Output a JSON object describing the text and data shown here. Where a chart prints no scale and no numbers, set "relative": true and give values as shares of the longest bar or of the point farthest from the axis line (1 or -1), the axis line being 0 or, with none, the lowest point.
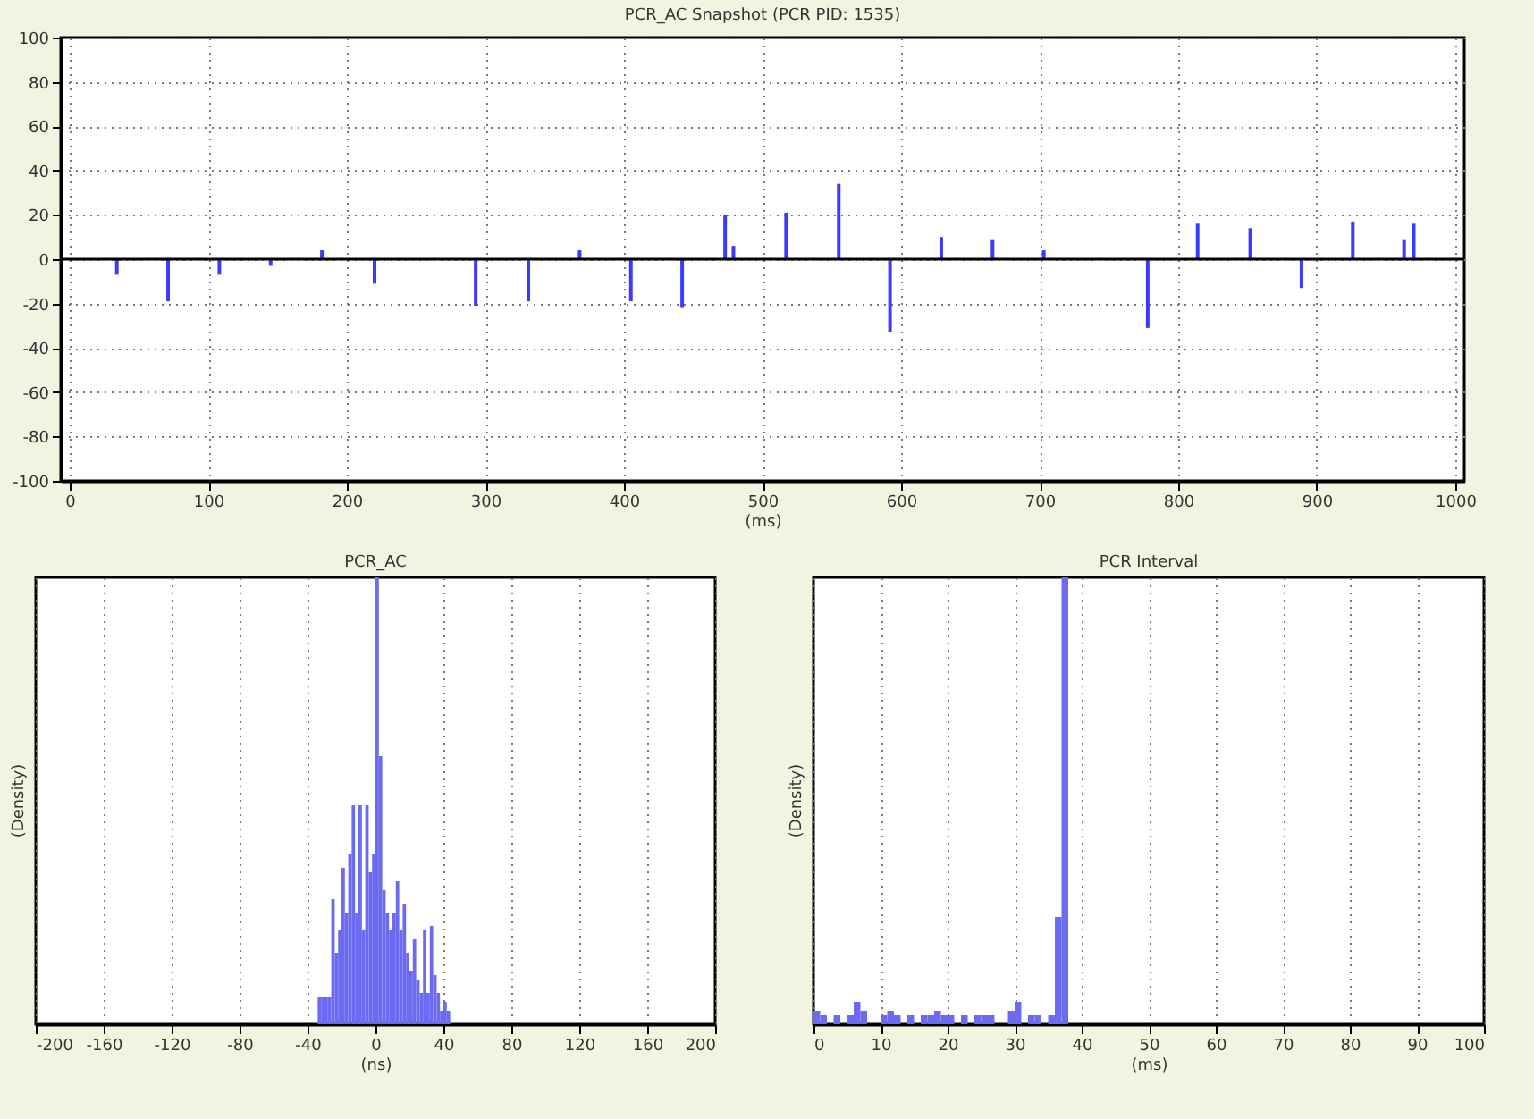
{
  "chart_data": [
    {
      "type": "bar",
      "title": "PCR_AC Snapshot (PCR PID: 1535)",
      "xlabel": "(ms)",
      "color": "#3b3bff",
      "grid": true,
      "x": [
        34,
        71,
        108,
        145,
        182,
        220,
        293,
        331,
        368,
        405,
        442,
        473,
        479,
        517,
        555,
        592,
        629,
        666,
        703,
        778,
        814,
        852,
        889,
        926,
        963,
        970
      ],
      "values": [
        -7,
        -19,
        -7,
        -3,
        4,
        -11,
        -21,
        -19,
        4,
        -19,
        -22,
        20,
        6,
        21,
        34,
        -33,
        10,
        9,
        4,
        -31,
        16,
        14,
        -13,
        17,
        9,
        16
      ],
      "xlim": [
        0,
        1000
      ],
      "xticks": [
        0,
        100,
        200,
        300,
        400,
        500,
        600,
        700,
        800,
        900,
        {
          "value": 1000,
          "label": "1000"
        }
      ],
      "ylim": [
        -100,
        100
      ],
      "yticks": [
        -100,
        -80,
        -60,
        -40,
        -20,
        0,
        20,
        40,
        60,
        80,
        100
      ]
    },
    {
      "type": "bar",
      "title": "PCR_AC",
      "xlabel": "(ns)",
      "ylabel": "(Density)",
      "color": "#6a6af2",
      "relative": true,
      "grid": "x",
      "x": [
        -33,
        -31,
        -29,
        -27,
        -25,
        -23,
        -21,
        -19,
        -17,
        -15,
        -13,
        -11,
        -9,
        -7,
        -5,
        -3,
        -1,
        1,
        3,
        5,
        7,
        9,
        11,
        13,
        15,
        17,
        19,
        21,
        23,
        25,
        27,
        29,
        31,
        33,
        35,
        37,
        39,
        41,
        43
      ],
      "values": [
        0.06,
        0.06,
        0.06,
        0.06,
        0.28,
        0.16,
        0.21,
        0.35,
        0.25,
        0.38,
        0.49,
        0.25,
        0.49,
        0.21,
        0.49,
        0.34,
        0.38,
        1,
        0.6,
        0.3,
        0.25,
        0.21,
        0.25,
        0.32,
        0.21,
        0.27,
        0.16,
        0.12,
        0.19,
        0.1,
        0.07,
        0.21,
        0.07,
        0.22,
        0.11,
        0.07,
        0.03,
        0.05,
        0.03
      ],
      "xlim": [
        -200,
        200
      ],
      "xticks": [
        -200,
        -160,
        -120,
        -80,
        -40,
        0,
        40,
        80,
        120,
        160,
        200
      ]
    },
    {
      "type": "bar",
      "title": "PCR Interval",
      "xlabel": "(ms)",
      "ylabel": "(Density)",
      "color": "#6a6af2",
      "relative": true,
      "grid": "x",
      "x": [
        0.5,
        1.5,
        2.5,
        3.5,
        4.5,
        5.5,
        6.5,
        7.5,
        8.5,
        9.5,
        10.5,
        11.5,
        12.5,
        13.5,
        14.5,
        15.5,
        16.5,
        17.5,
        18.5,
        19.5,
        20.5,
        21.5,
        22.5,
        23.5,
        24.5,
        25.5,
        26.5,
        27.5,
        28.5,
        29.5,
        30.5,
        31.5,
        32.5,
        33.5,
        34.5,
        35.5,
        36.5,
        37.5
      ],
      "values": [
        0.03,
        0.02,
        0,
        0.02,
        0,
        0.02,
        0.05,
        0.03,
        0,
        0,
        0.02,
        0.03,
        0.02,
        0,
        0.02,
        0,
        0.02,
        0.02,
        0.03,
        0.02,
        0.02,
        0,
        0.02,
        0,
        0.02,
        0.02,
        0.02,
        0,
        0,
        0.03,
        0.05,
        0,
        0.02,
        0.02,
        0,
        0.02,
        0.24,
        1
      ],
      "xlim": [
        0,
        100
      ],
      "xticks": [
        0,
        10,
        20,
        30,
        40,
        50,
        60,
        70,
        80,
        90,
        100
      ]
    }
  ]
}
